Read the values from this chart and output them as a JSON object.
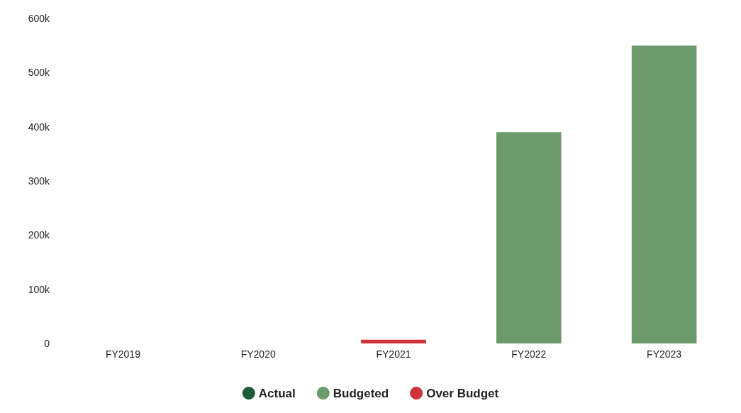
{
  "chart_data": {
    "type": "bar",
    "stacked": true,
    "categories": [
      "FY2019",
      "FY2020",
      "FY2021",
      "FY2022",
      "FY2023"
    ],
    "series": [
      {
        "name": "Actual",
        "color": "#1f5a36",
        "values": [
          null,
          null,
          null,
          null,
          null
        ]
      },
      {
        "name": "Budgeted",
        "color": "#6b9a6b",
        "values": [
          null,
          null,
          null,
          390000,
          550000
        ]
      },
      {
        "name": "Over Budget",
        "color": "#d0323a",
        "values": [
          null,
          null,
          7000,
          null,
          null
        ]
      }
    ],
    "ylim": [
      0,
      600000
    ],
    "yticks": [
      {
        "value": 0,
        "label": "0"
      },
      {
        "value": 100000,
        "label": "100k"
      },
      {
        "value": 200000,
        "label": "200k"
      },
      {
        "value": 300000,
        "label": "300k"
      },
      {
        "value": 400000,
        "label": "400k"
      },
      {
        "value": 500000,
        "label": "500k"
      },
      {
        "value": 600000,
        "label": "600k"
      }
    ],
    "grid": false,
    "legend": "bottom"
  }
}
